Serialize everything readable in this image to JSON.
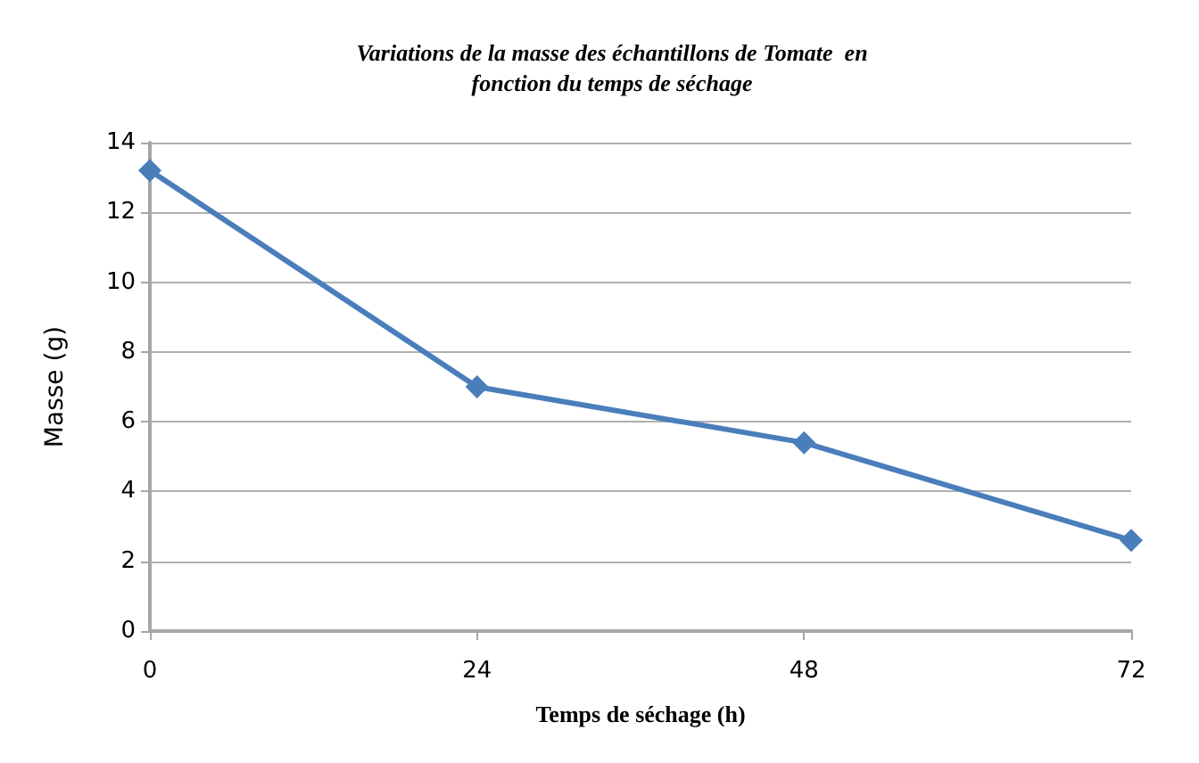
{
  "chart_data": {
    "type": "line",
    "title": "Variations de la masse des échantillons de Tomate  en\nfonction du temps de séchage",
    "xlabel": "Temps de séchage (h)",
    "ylabel": "Masse (g)",
    "x": [
      0,
      24,
      48,
      72
    ],
    "series": [
      {
        "color": "#4a7ebb",
        "values": [
          13.2,
          7.0,
          5.4,
          2.6
        ]
      }
    ],
    "xlim": [
      0,
      72
    ],
    "xticks": [
      0,
      24,
      48,
      72
    ],
    "ylim": [
      0,
      14
    ],
    "yticks": [
      0,
      2,
      4,
      6,
      8,
      10,
      12,
      14
    ],
    "grid": "y",
    "marker": "diamond",
    "line_style": "solid"
  }
}
